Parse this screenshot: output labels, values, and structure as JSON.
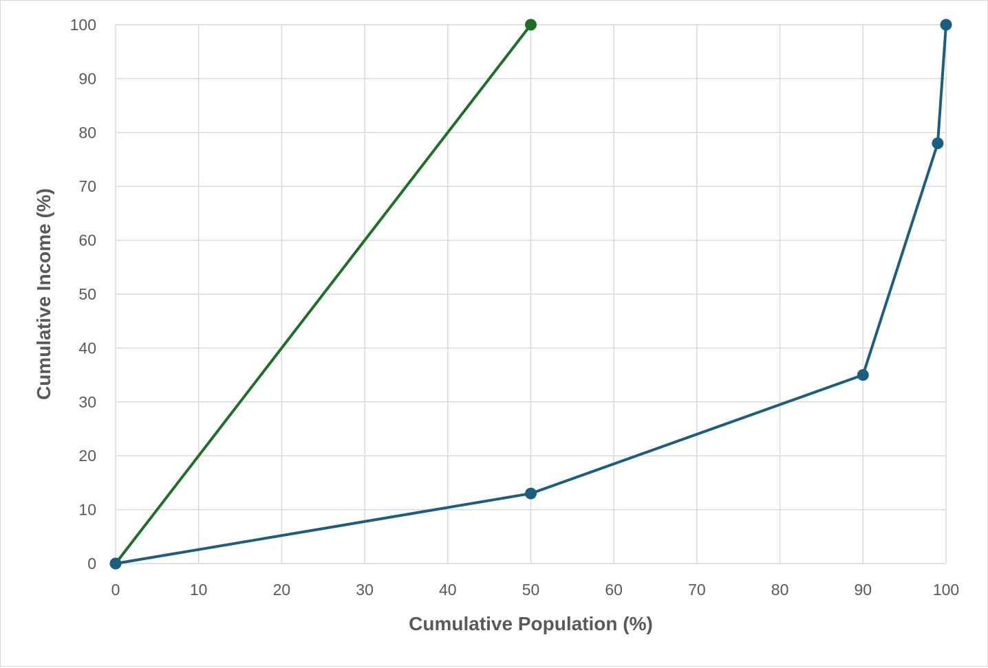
{
  "chart_data": {
    "type": "line",
    "title": "",
    "xlabel": "Cumulative Population (%)",
    "ylabel": "Cumulative Income (%)",
    "xlim": [
      0,
      100
    ],
    "ylim": [
      0,
      100
    ],
    "x_ticks": [
      0,
      10,
      20,
      30,
      40,
      50,
      60,
      70,
      80,
      90,
      100
    ],
    "y_ticks": [
      0,
      10,
      20,
      30,
      40,
      50,
      60,
      70,
      80,
      90,
      100
    ],
    "grid": true,
    "legend": "none",
    "series": [
      {
        "color": "#1f6f2a",
        "points": [
          {
            "x": 0,
            "y": 0
          },
          {
            "x": 50,
            "y": 100
          }
        ]
      },
      {
        "color": "#1b5e80",
        "points": [
          {
            "x": 0,
            "y": 0
          },
          {
            "x": 50,
            "y": 13
          },
          {
            "x": 90,
            "y": 35
          },
          {
            "x": 99,
            "y": 78
          },
          {
            "x": 100,
            "y": 100
          }
        ]
      }
    ]
  }
}
